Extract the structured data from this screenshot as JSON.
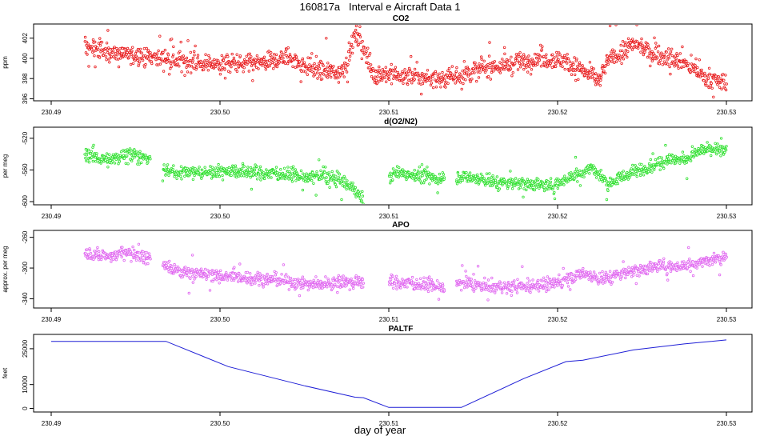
{
  "page": {
    "title": "160817a   Interval e Aircraft Data 1",
    "xlabel": "day of year"
  },
  "chart_data": [
    {
      "type": "scatter",
      "title": "CO2",
      "ylabel": "ppm",
      "xlim": [
        230.49,
        230.53
      ],
      "ylim": [
        395.8,
        403.4
      ],
      "x_ticks": [
        "230.49",
        "230.50",
        "230.51",
        "230.52",
        "230.53"
      ],
      "y_ticks": [
        "396",
        "398",
        "400",
        "402"
      ],
      "color": "#e8191b",
      "point_style": "open-circle",
      "x_range": [
        230.492,
        230.53
      ],
      "gaps": [],
      "trend": [
        [
          230.492,
          401.2
        ],
        [
          230.4935,
          400.6
        ],
        [
          230.495,
          400.3
        ],
        [
          230.4965,
          400.1
        ],
        [
          230.498,
          399.6
        ],
        [
          230.4995,
          399.5
        ],
        [
          230.501,
          399.4
        ],
        [
          230.503,
          399.6
        ],
        [
          230.504,
          400.2
        ],
        [
          230.505,
          399.3
        ],
        [
          230.506,
          398.8
        ],
        [
          230.507,
          398.6
        ],
        [
          230.5075,
          399.3
        ],
        [
          230.508,
          402.5
        ],
        [
          230.5085,
          401.0
        ],
        [
          230.509,
          398.6
        ],
        [
          230.511,
          398.2
        ],
        [
          230.513,
          398.0
        ],
        [
          230.5145,
          398.4
        ],
        [
          230.5155,
          399.0
        ],
        [
          230.517,
          399.3
        ],
        [
          230.519,
          400.0
        ],
        [
          230.5205,
          399.8
        ],
        [
          230.5215,
          398.6
        ],
        [
          230.5225,
          398.0
        ],
        [
          230.523,
          399.8
        ],
        [
          230.5245,
          401.4
        ],
        [
          230.526,
          400.3
        ],
        [
          230.5275,
          399.5
        ],
        [
          230.5285,
          398.4
        ],
        [
          230.5295,
          397.6
        ],
        [
          230.53,
          397.6
        ]
      ],
      "noise": 0.9
    },
    {
      "type": "scatter",
      "title": "d(O2/N2)",
      "ylabel": "per meg",
      "xlim": [
        230.49,
        230.53
      ],
      "ylim": [
        -604,
        -506
      ],
      "x_ticks": [
        "230.49",
        "230.50",
        "230.51",
        "230.52",
        "230.53"
      ],
      "y_ticks": [
        "-600",
        "-560",
        "-520"
      ],
      "color": "#2ee02e",
      "point_style": "open-circle",
      "x_range": [
        230.492,
        230.53
      ],
      "gaps": [
        [
          230.4959,
          230.4966
        ],
        [
          230.5085,
          230.51
        ],
        [
          230.5133,
          230.514
        ]
      ],
      "trend": [
        [
          230.492,
          -540
        ],
        [
          230.4935,
          -548
        ],
        [
          230.4945,
          -538
        ],
        [
          230.496,
          -548
        ],
        [
          230.497,
          -563
        ],
        [
          230.499,
          -563
        ],
        [
          230.5005,
          -561
        ],
        [
          230.502,
          -563
        ],
        [
          230.504,
          -565
        ],
        [
          230.505,
          -570
        ],
        [
          230.506,
          -568
        ],
        [
          230.507,
          -571
        ],
        [
          230.508,
          -585
        ],
        [
          230.5085,
          -597
        ],
        [
          230.5105,
          -563
        ],
        [
          230.513,
          -571
        ],
        [
          230.5145,
          -568
        ],
        [
          230.5165,
          -576
        ],
        [
          230.518,
          -577
        ],
        [
          230.519,
          -578
        ],
        [
          230.5195,
          -581
        ],
        [
          230.5205,
          -571
        ],
        [
          230.5215,
          -563
        ],
        [
          230.522,
          -557
        ],
        [
          230.523,
          -576
        ],
        [
          230.5245,
          -563
        ],
        [
          230.5255,
          -555
        ],
        [
          230.5265,
          -546
        ],
        [
          230.5275,
          -547
        ],
        [
          230.5285,
          -535
        ],
        [
          230.53,
          -535
        ]
      ],
      "noise": 8
    },
    {
      "type": "scatter",
      "title": "APO",
      "ylabel": "approx. per meg",
      "xlim": [
        230.49,
        230.53
      ],
      "ylim": [
        -352,
        -251
      ],
      "x_ticks": [
        "230.49",
        "230.50",
        "230.51",
        "230.52",
        "230.53"
      ],
      "y_ticks": [
        "-340",
        "-300",
        "-260"
      ],
      "color": "#e066f0",
      "point_style": "open-circle",
      "x_range": [
        230.492,
        230.53
      ],
      "gaps": [
        [
          230.4959,
          230.4966
        ],
        [
          230.5085,
          230.51
        ],
        [
          230.5133,
          230.514
        ]
      ],
      "trend": [
        [
          230.492,
          -282
        ],
        [
          230.4935,
          -285
        ],
        [
          230.4945,
          -278
        ],
        [
          230.496,
          -289
        ],
        [
          230.4968,
          -297
        ],
        [
          230.4975,
          -304
        ],
        [
          230.499,
          -308
        ],
        [
          230.5005,
          -311
        ],
        [
          230.502,
          -313
        ],
        [
          230.504,
          -317
        ],
        [
          230.5055,
          -322
        ],
        [
          230.507,
          -317
        ],
        [
          230.508,
          -319
        ],
        [
          230.5105,
          -318
        ],
        [
          230.512,
          -321
        ],
        [
          230.5133,
          -326
        ],
        [
          230.5145,
          -319
        ],
        [
          230.516,
          -325
        ],
        [
          230.518,
          -323
        ],
        [
          230.5195,
          -322
        ],
        [
          230.5205,
          -315
        ],
        [
          230.5215,
          -306
        ],
        [
          230.5225,
          -315
        ],
        [
          230.524,
          -306
        ],
        [
          230.526,
          -297
        ],
        [
          230.5275,
          -297
        ],
        [
          230.529,
          -290
        ],
        [
          230.53,
          -283
        ]
      ],
      "noise": 8
    },
    {
      "type": "line",
      "title": "PALTF",
      "ylabel": "feet",
      "xlim": [
        230.49,
        230.53
      ],
      "ylim": [
        -1500,
        31000
      ],
      "x_ticks": [
        "230.49",
        "230.50",
        "230.51",
        "230.52",
        "230.53"
      ],
      "y_ticks": [
        "0",
        "10000",
        "25000"
      ],
      "color": "#1f1fd6",
      "x": [
        230.49,
        230.4968,
        230.5005,
        230.505,
        230.508,
        230.5085,
        230.51,
        230.5143,
        230.518,
        230.5205,
        230.5215,
        230.5245,
        230.5275,
        230.53
      ],
      "y": [
        28100,
        28100,
        17500,
        9500,
        4700,
        4500,
        400,
        400,
        12500,
        19600,
        20200,
        24500,
        27000,
        28700
      ]
    }
  ]
}
